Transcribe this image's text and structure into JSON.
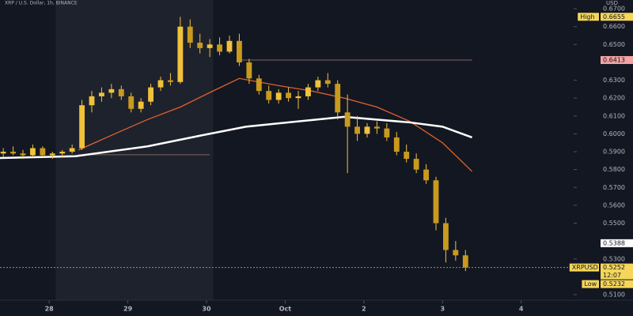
{
  "chart_data": {
    "type": "candlestick",
    "title": "XRP / U.S. Dollar, 1h, BINANCE",
    "axis_unit": "USD",
    "candle_color": "#f0c23a",
    "x": [
      -14,
      -11,
      -8,
      -5,
      -2,
      1,
      4,
      7,
      10,
      13,
      16,
      19,
      22,
      25,
      28,
      31,
      34,
      37,
      40,
      43,
      46,
      49,
      52,
      55,
      58,
      61,
      64,
      67,
      70,
      73,
      76,
      79,
      82,
      85,
      88,
      91,
      94,
      97,
      100,
      103,
      106,
      109,
      112,
      115,
      118,
      121,
      124,
      127
    ],
    "open": [
      0.589,
      0.59,
      0.589,
      0.588,
      0.592,
      0.588,
      0.589,
      0.59,
      0.592,
      0.616,
      0.621,
      0.623,
      0.625,
      0.621,
      0.614,
      0.618,
      0.626,
      0.63,
      0.629,
      0.66,
      0.651,
      0.648,
      0.65,
      0.646,
      0.652,
      0.64,
      0.631,
      0.624,
      0.619,
      0.623,
      0.62,
      0.621,
      0.626,
      0.63,
      0.628,
      0.612,
      0.604,
      0.6,
      0.604,
      0.603,
      0.598,
      0.59,
      0.586,
      0.58,
      0.574,
      0.55,
      0.535,
      0.532
    ],
    "high": [
      0.592,
      0.593,
      0.591,
      0.594,
      0.593,
      0.59,
      0.591,
      0.594,
      0.619,
      0.624,
      0.626,
      0.628,
      0.627,
      0.623,
      0.62,
      0.628,
      0.632,
      0.634,
      0.6655,
      0.664,
      0.656,
      0.653,
      0.654,
      0.655,
      0.656,
      0.642,
      0.633,
      0.627,
      0.625,
      0.626,
      0.624,
      0.628,
      0.632,
      0.634,
      0.63,
      0.622,
      0.61,
      0.606,
      0.607,
      0.606,
      0.601,
      0.594,
      0.589,
      0.583,
      0.576,
      0.553,
      0.54,
      0.535
    ],
    "low": [
      0.587,
      0.588,
      0.586,
      0.587,
      0.587,
      0.586,
      0.587,
      0.589,
      0.591,
      0.612,
      0.618,
      0.62,
      0.619,
      0.612,
      0.612,
      0.616,
      0.624,
      0.627,
      0.628,
      0.648,
      0.645,
      0.643,
      0.644,
      0.645,
      0.638,
      0.628,
      0.622,
      0.617,
      0.617,
      0.618,
      0.614,
      0.619,
      0.624,
      0.626,
      0.608,
      0.578,
      0.596,
      0.598,
      0.6,
      0.596,
      0.588,
      0.584,
      0.578,
      0.572,
      0.546,
      0.528,
      0.529,
      0.5232
    ],
    "close": [
      0.59,
      0.589,
      0.588,
      0.592,
      0.588,
      0.589,
      0.59,
      0.592,
      0.616,
      0.621,
      0.623,
      0.625,
      0.621,
      0.614,
      0.618,
      0.626,
      0.63,
      0.629,
      0.66,
      0.651,
      0.648,
      0.65,
      0.646,
      0.652,
      0.64,
      0.631,
      0.624,
      0.619,
      0.623,
      0.62,
      0.621,
      0.626,
      0.63,
      0.628,
      0.612,
      0.604,
      0.6,
      0.604,
      0.603,
      0.598,
      0.59,
      0.586,
      0.58,
      0.574,
      0.55,
      0.535,
      0.532,
      0.5252
    ],
    "lines": [
      {
        "color": "#e0622c",
        "x": [
          9,
          20,
          30,
          40,
          50,
          58,
          70,
          80,
          90,
          100,
          110,
          120,
          129
        ],
        "values": [
          0.591,
          0.6,
          0.608,
          0.615,
          0.624,
          0.631,
          0.627,
          0.624,
          0.62,
          0.615,
          0.607,
          0.595,
          0.579
        ]
      },
      {
        "color": "#ffffff",
        "x": [
          -15,
          8,
          30,
          48,
          60,
          80,
          90,
          110,
          120,
          129
        ],
        "values": [
          0.5865,
          0.5875,
          0.593,
          0.5997,
          0.604,
          0.6077,
          0.6095,
          0.6064,
          0.604,
          0.598
        ]
      }
    ],
    "hlines": [
      {
        "value": 0.6413,
        "x": [
          58,
          129
        ],
        "color": "#7d6464"
      },
      {
        "value": 0.5883,
        "x": [
          9,
          49
        ],
        "color": "#7d6464"
      },
      {
        "value": 0.5252,
        "color": "#f0c23a",
        "dashed": true
      }
    ],
    "shaded_x": [
      2,
      50
    ],
    "price_labels": [
      {
        "value": 0.6655,
        "label": "0.6655",
        "tag": "High",
        "bg": "#f5d65a"
      },
      {
        "value": 0.6413,
        "label": "0.6413",
        "bg": "#f3a3a3"
      },
      {
        "value": 0.5388,
        "label": "0.5388",
        "bg": "#ffffff"
      },
      {
        "value": 0.5252,
        "label": "0.5252",
        "tag": "XRPUSD",
        "extra": "12:07",
        "bg": "#f5d65a"
      },
      {
        "value": 0.5232,
        "label": "0.5232",
        "tag": "Low",
        "bg": "#f5d65a"
      }
    ],
    "xlim": [
      -15,
      160
    ],
    "xticks": [
      {
        "value": 0,
        "label": "28"
      },
      {
        "value": 24,
        "label": "29"
      },
      {
        "value": 48,
        "label": "30"
      },
      {
        "value": 72,
        "label": "Oct"
      },
      {
        "value": 96,
        "label": "2"
      },
      {
        "value": 120,
        "label": "3"
      },
      {
        "value": 144,
        "label": "4"
      }
    ],
    "ylim": [
      0.5069,
      0.6749
    ],
    "yticks": [
      {
        "value": 0.67,
        "label": "0.6700"
      },
      {
        "value": 0.66,
        "label": "0.6600"
      },
      {
        "value": 0.65,
        "label": "0.6500"
      },
      {
        "value": 0.63,
        "label": "0.6300"
      },
      {
        "value": 0.62,
        "label": "0.6200"
      },
      {
        "value": 0.61,
        "label": "0.6100"
      },
      {
        "value": 0.6,
        "label": "0.6000"
      },
      {
        "value": 0.59,
        "label": "0.5900"
      },
      {
        "value": 0.58,
        "label": "0.5800"
      },
      {
        "value": 0.57,
        "label": "0.5700"
      },
      {
        "value": 0.56,
        "label": "0.5600"
      },
      {
        "value": 0.55,
        "label": "0.5500"
      },
      {
        "value": 0.53,
        "label": "0.5300"
      },
      {
        "value": 0.51,
        "label": "0.5100"
      }
    ],
    "grid": false
  }
}
